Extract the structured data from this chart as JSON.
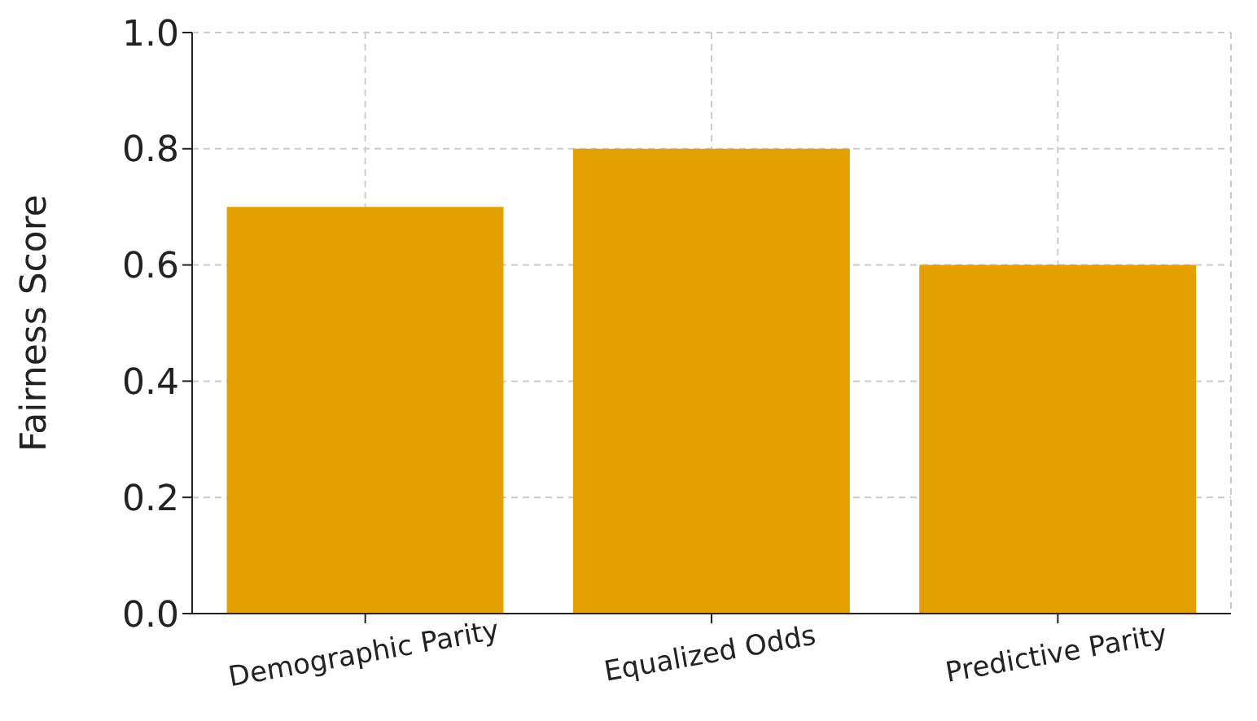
{
  "chart_data": {
    "type": "bar",
    "ylabel": "Fairness Score",
    "categories": [
      "Demographic Parity",
      "Equalized Odds",
      "Predictive Parity"
    ],
    "values": [
      0.7,
      0.8,
      0.6
    ],
    "color": "#e3a000",
    "ylim": [
      0,
      1
    ],
    "yticks": [
      {
        "value": 0,
        "label": "0.0"
      },
      {
        "value": 0.2,
        "label": "0.2"
      },
      {
        "value": 0.4,
        "label": "0.4"
      },
      {
        "value": 0.6,
        "label": "0.6"
      },
      {
        "value": 0.8,
        "label": "0.8"
      },
      {
        "value": 1,
        "label": "1.0"
      }
    ],
    "grid": true
  }
}
